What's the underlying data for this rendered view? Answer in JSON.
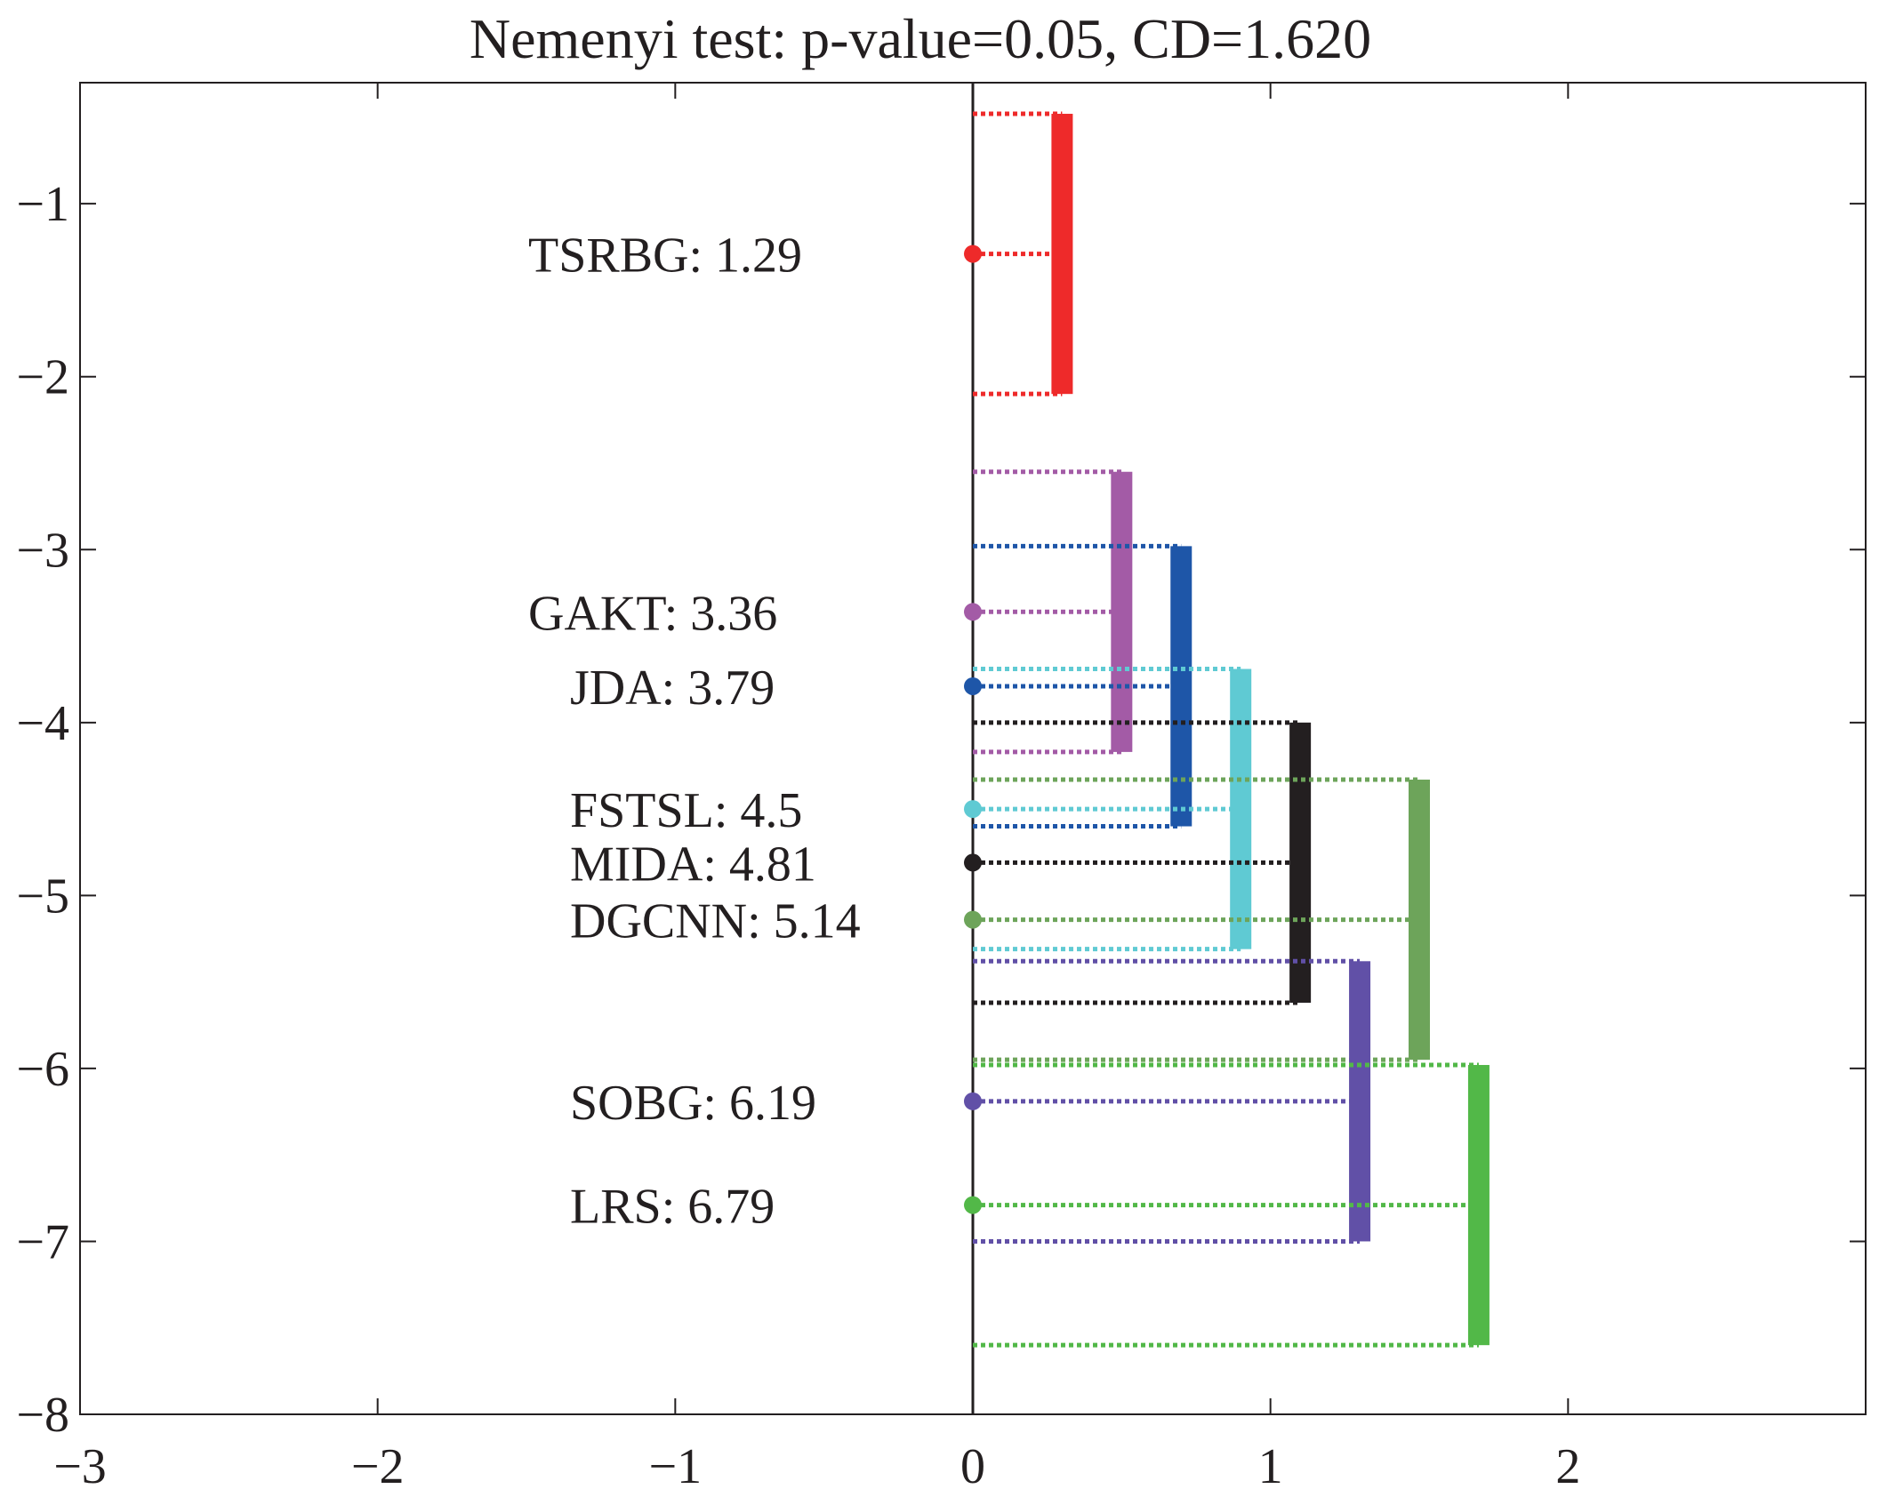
{
  "chart_data": {
    "type": "critical-difference",
    "title": "Nemenyi test: p-value=0.05, CD=1.620",
    "xlim": [
      -3,
      3
    ],
    "ylim": [
      -8,
      -0.3
    ],
    "x_ticks": [
      {
        "value": -3,
        "label": "−3"
      },
      {
        "value": -2,
        "label": "−2"
      },
      {
        "value": -1,
        "label": "−1"
      },
      {
        "value": 0,
        "label": "0"
      },
      {
        "value": 1,
        "label": "1"
      },
      {
        "value": 2,
        "label": "2"
      }
    ],
    "y_ticks": [
      {
        "value": -1,
        "label": "−1"
      },
      {
        "value": -2,
        "label": "−2"
      },
      {
        "value": -3,
        "label": "−3"
      },
      {
        "value": -4,
        "label": "−4"
      },
      {
        "value": -5,
        "label": "−5"
      },
      {
        "value": -6,
        "label": "−6"
      },
      {
        "value": -7,
        "label": "−7"
      },
      {
        "value": -8,
        "label": "−8"
      }
    ],
    "critical_difference": 1.62,
    "methods": [
      {
        "name": "TSRBG",
        "rank": 1.29,
        "label": "TSRBG: 1.29",
        "color": "#ee2a2a",
        "bar_x": 0.3,
        "range": [
          0.48,
          2.1
        ]
      },
      {
        "name": "GAKT",
        "rank": 3.36,
        "label": "GAKT: 3.36",
        "color": "#a35ba6",
        "bar_x": 0.5,
        "range": [
          2.55,
          4.17
        ]
      },
      {
        "name": "JDA",
        "rank": 3.79,
        "label": "JDA: 3.79",
        "color": "#1e56a8",
        "bar_x": 0.7,
        "range": [
          2.98,
          4.6
        ]
      },
      {
        "name": "FSTSL",
        "rank": 4.5,
        "label": "FSTSL: 4.5",
        "color": "#5fcad3",
        "bar_x": 0.9,
        "range": [
          3.69,
          5.31
        ]
      },
      {
        "name": "MIDA",
        "rank": 4.81,
        "label": "MIDA: 4.81",
        "color": "#231f20",
        "bar_x": 1.1,
        "range": [
          4.0,
          5.62
        ]
      },
      {
        "name": "DGCNN",
        "rank": 5.14,
        "label": "DGCNN: 5.14",
        "color": "#6da45a",
        "bar_x": 1.5,
        "range": [
          4.33,
          5.95
        ]
      },
      {
        "name": "SOBG",
        "rank": 6.19,
        "label": "SOBG: 6.19",
        "color": "#6150a7",
        "bar_x": 1.3,
        "range": [
          5.38,
          7.0
        ]
      },
      {
        "name": "LRS",
        "rank": 6.79,
        "label": "LRS: 6.79",
        "color": "#52b848",
        "bar_x": 1.7,
        "range": [
          5.98,
          7.6
        ]
      }
    ]
  }
}
